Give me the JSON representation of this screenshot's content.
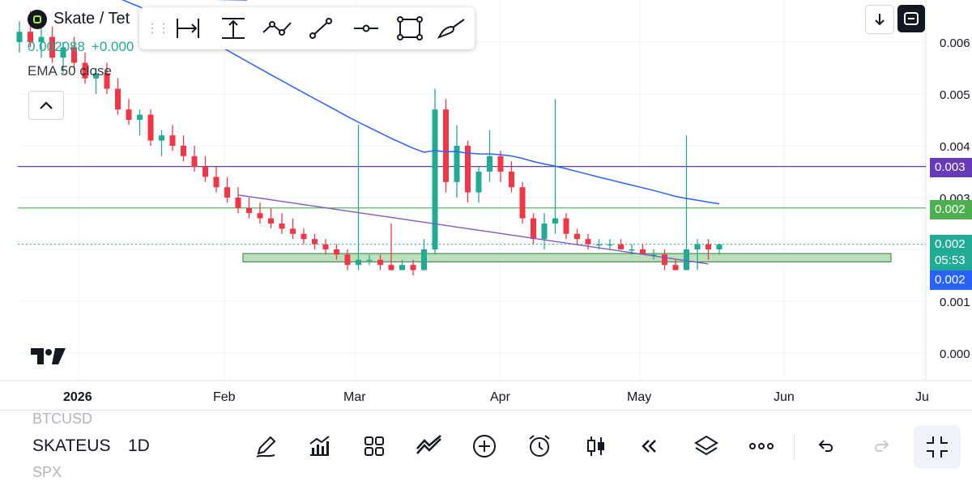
{
  "symbol": {
    "title": "Skate / Tet",
    "price": "0.002088",
    "change": "+0.000"
  },
  "indicator": {
    "label": "EMA 50 close"
  },
  "price_axis": {
    "labels": [
      "0.006",
      "0.005",
      "0.004",
      "0.003",
      "0.001",
      "0.000"
    ]
  },
  "price_tags": {
    "purple": "0.003",
    "green": "0.002",
    "last": "0.002",
    "countdown": "05:53",
    "blue": "0.002"
  },
  "time_axis": {
    "labels": [
      {
        "text": "2026",
        "bold": true
      },
      {
        "text": "Feb",
        "bold": false
      },
      {
        "text": "Mar",
        "bold": false
      },
      {
        "text": "Apr",
        "bold": false
      },
      {
        "text": "May",
        "bold": false
      },
      {
        "text": "Jun",
        "bold": false
      },
      {
        "text": "Ju",
        "bold": false
      }
    ]
  },
  "drawing_toolbar": {
    "icons": [
      "date-range-icon",
      "price-range-icon",
      "path-icon",
      "trend-line-icon",
      "horizontal-ray-icon",
      "rectangle-icon",
      "brush-icon"
    ]
  },
  "bottom_bar": {
    "symbol_prev": "BTCUSD",
    "symbol_current": "SKATEUS",
    "symbol_next": "SPX",
    "interval": "1D",
    "icons": [
      "pencil-icon",
      "indicators-icon",
      "layouts-icon",
      "compare-icon",
      "add-icon",
      "alert-icon",
      "candles-icon",
      "replay-icon",
      "layers-icon",
      "more-icon",
      "undo-icon",
      "redo-icon"
    ]
  },
  "colors": {
    "up": "#22ab94",
    "down": "#f23645",
    "ema": "#2962ff",
    "purple_line": "#673ab7",
    "green_line": "#4caf50",
    "zone_fill": "#a5d6a7",
    "last_price_bg": "#22ab94",
    "blue_tag": "#2962ff"
  },
  "chart_data": {
    "type": "candlestick",
    "ema_period": 50,
    "horizontal_levels": [
      0.0036,
      0.0028
    ],
    "support_zone": [
      0.00176,
      0.00192
    ],
    "trend_line": [
      [
        20,
        0.00305
      ],
      [
        63,
        0.00172
      ]
    ],
    "candles": [
      [
        0.006,
        0.0064,
        0.0058,
        0.0062
      ],
      [
        0.0062,
        0.0066,
        0.0059,
        0.006
      ],
      [
        0.006,
        0.0063,
        0.0057,
        0.0061
      ],
      [
        0.0061,
        0.0063,
        0.0056,
        0.0057
      ],
      [
        0.0057,
        0.006,
        0.0054,
        0.0059
      ],
      [
        0.0059,
        0.0061,
        0.0055,
        0.0056
      ],
      [
        0.0056,
        0.0058,
        0.0052,
        0.0053
      ],
      [
        0.0053,
        0.0055,
        0.005,
        0.0054
      ],
      [
        0.0054,
        0.0056,
        0.005,
        0.0051
      ],
      [
        0.0051,
        0.0053,
        0.0046,
        0.0047
      ],
      [
        0.0047,
        0.0049,
        0.0044,
        0.0045
      ],
      [
        0.0045,
        0.0047,
        0.0042,
        0.0046
      ],
      [
        0.0046,
        0.0047,
        0.004,
        0.0041
      ],
      [
        0.0041,
        0.0043,
        0.0038,
        0.0042
      ],
      [
        0.0042,
        0.0044,
        0.0039,
        0.004
      ],
      [
        0.004,
        0.0042,
        0.0037,
        0.0038
      ],
      [
        0.0038,
        0.004,
        0.0035,
        0.0036
      ],
      [
        0.0036,
        0.0038,
        0.0033,
        0.0034
      ],
      [
        0.0034,
        0.0036,
        0.0031,
        0.0032
      ],
      [
        0.0032,
        0.0034,
        0.0029,
        0.003
      ],
      [
        0.003,
        0.0032,
        0.0027,
        0.0028
      ],
      [
        0.0028,
        0.003,
        0.0026,
        0.0027
      ],
      [
        0.0027,
        0.0029,
        0.0025,
        0.0026
      ],
      [
        0.0026,
        0.0028,
        0.0024,
        0.0025
      ],
      [
        0.0025,
        0.0027,
        0.0023,
        0.0024
      ],
      [
        0.0024,
        0.0026,
        0.0022,
        0.0023
      ],
      [
        0.0023,
        0.0024,
        0.0021,
        0.0022
      ],
      [
        0.0022,
        0.0023,
        0.002,
        0.0021
      ],
      [
        0.0021,
        0.0022,
        0.0019,
        0.002
      ],
      [
        0.002,
        0.0021,
        0.0018,
        0.0019
      ],
      [
        0.0019,
        0.002,
        0.0016,
        0.0017
      ],
      [
        0.0017,
        0.0044,
        0.0016,
        0.0018
      ],
      [
        0.0018,
        0.0019,
        0.0017,
        0.0018
      ],
      [
        0.0018,
        0.0019,
        0.0016,
        0.0017
      ],
      [
        0.0017,
        0.0025,
        0.0016,
        0.0016
      ],
      [
        0.0016,
        0.0018,
        0.0016,
        0.0017
      ],
      [
        0.0017,
        0.0018,
        0.0015,
        0.0016
      ],
      [
        0.0016,
        0.0022,
        0.0016,
        0.002
      ],
      [
        0.002,
        0.0051,
        0.0019,
        0.0047
      ],
      [
        0.0047,
        0.0049,
        0.0031,
        0.0033
      ],
      [
        0.0033,
        0.0044,
        0.003,
        0.004
      ],
      [
        0.004,
        0.0041,
        0.0029,
        0.0031
      ],
      [
        0.0031,
        0.0036,
        0.0029,
        0.0035
      ],
      [
        0.0035,
        0.0043,
        0.0033,
        0.0038
      ],
      [
        0.0038,
        0.0039,
        0.0033,
        0.0035
      ],
      [
        0.0035,
        0.0037,
        0.0031,
        0.0032
      ],
      [
        0.0032,
        0.0033,
        0.0025,
        0.0026
      ],
      [
        0.0026,
        0.0027,
        0.0021,
        0.0022
      ],
      [
        0.0022,
        0.0027,
        0.002,
        0.0025
      ],
      [
        0.0025,
        0.0049,
        0.0023,
        0.0026
      ],
      [
        0.0026,
        0.0027,
        0.0022,
        0.0023
      ],
      [
        0.0023,
        0.0024,
        0.0021,
        0.0022
      ],
      [
        0.0022,
        0.0023,
        0.002,
        0.0021
      ],
      [
        0.0021,
        0.0022,
        0.002,
        0.0021
      ],
      [
        0.0021,
        0.0022,
        0.002,
        0.0021
      ],
      [
        0.0021,
        0.0022,
        0.002,
        0.002
      ],
      [
        0.002,
        0.0021,
        0.0019,
        0.002
      ],
      [
        0.002,
        0.0021,
        0.0019,
        0.0019
      ],
      [
        0.0019,
        0.002,
        0.0018,
        0.0019
      ],
      [
        0.0019,
        0.002,
        0.0016,
        0.0017
      ],
      [
        0.0017,
        0.0018,
        0.0016,
        0.0016
      ],
      [
        0.0016,
        0.0042,
        0.0016,
        0.002
      ],
      [
        0.002,
        0.0022,
        0.0016,
        0.0021
      ],
      [
        0.0021,
        0.0022,
        0.0018,
        0.002
      ],
      [
        0.002,
        0.0021,
        0.0019,
        0.0021
      ]
    ]
  }
}
